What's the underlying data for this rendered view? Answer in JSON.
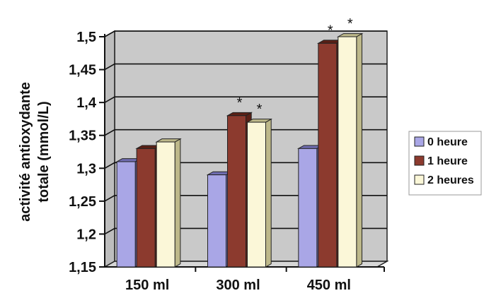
{
  "chart_data": {
    "type": "bar",
    "categories": [
      "150 ml",
      "300 ml",
      "450 ml"
    ],
    "series": [
      {
        "name": "0 heure",
        "values": [
          1.31,
          1.29,
          1.33
        ]
      },
      {
        "name": "1 heure",
        "values": [
          1.33,
          1.38,
          1.49
        ]
      },
      {
        "name": "2 heures",
        "values": [
          1.34,
          1.37,
          1.5
        ]
      }
    ],
    "significance": [
      [
        false,
        false,
        false
      ],
      [
        false,
        true,
        true
      ],
      [
        false,
        true,
        true
      ]
    ],
    "significance_marker": "*",
    "ylabel_lines": [
      "activité antioxydante",
      "totale (mmol/L)"
    ],
    "ylim": [
      1.15,
      1.5
    ],
    "yticks": [
      1.15,
      1.2,
      1.25,
      1.3,
      1.35,
      1.4,
      1.45,
      1.5
    ],
    "ytick_labels": [
      "1,15",
      "1,2",
      "1,25",
      "1,3",
      "1,35",
      "1,4",
      "1,45",
      "1,5"
    ],
    "grid": true,
    "legend_position": "right",
    "colors": {
      "series": [
        "#a9a6e6",
        "#8c3a2e",
        "#fbf7d8"
      ],
      "series_dark": [
        "#6f6cb0",
        "#5a2016",
        "#bdb88a"
      ],
      "wall": "#c9c9c9"
    }
  }
}
